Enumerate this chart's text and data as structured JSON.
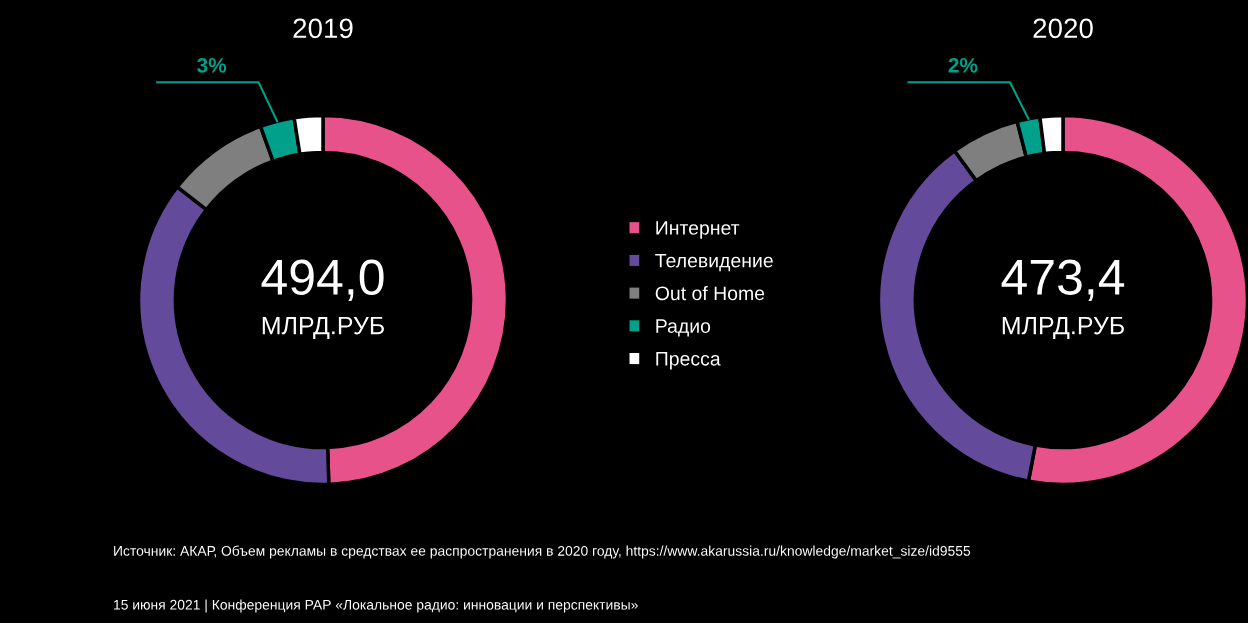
{
  "chart_data": [
    {
      "type": "donut",
      "title": "2019",
      "categories": [
        "Интернет",
        "Телевидение",
        "Out of Home",
        "Радио",
        "Пресса"
      ],
      "values": [
        49.5,
        36,
        9,
        3,
        2.5
      ],
      "colors": [
        "#e8528a",
        "#644a9b",
        "#7f7f7f",
        "#00a08a",
        "#ffffff"
      ],
      "value_labels": [
        null,
        null,
        null,
        "3%",
        null
      ],
      "legend": "right",
      "annotations": [
        "494,0",
        "МЛРД.РУБ",
        "Источник: АКАР, Объем рекламы в средствах ее распространения в 2020 году, https://www.akarussia.ru/knowledge/market_size/id9555",
        "15 июня 2021 | Конференция РАР «Локальное радио: инновации и перспективы»"
      ]
    },
    {
      "type": "donut",
      "title": "2020",
      "categories": [
        null,
        null,
        null,
        null,
        null
      ],
      "values": [
        53,
        37,
        6,
        2,
        2
      ],
      "colors": [
        "#e8528a",
        "#644a9b",
        "#7f7f7f",
        "#00a08a",
        "#ffffff"
      ],
      "value_labels": [
        null,
        null,
        null,
        "2%",
        null
      ],
      "annotations": [
        "473,4",
        "МЛРД.РУБ"
      ]
    }
  ]
}
